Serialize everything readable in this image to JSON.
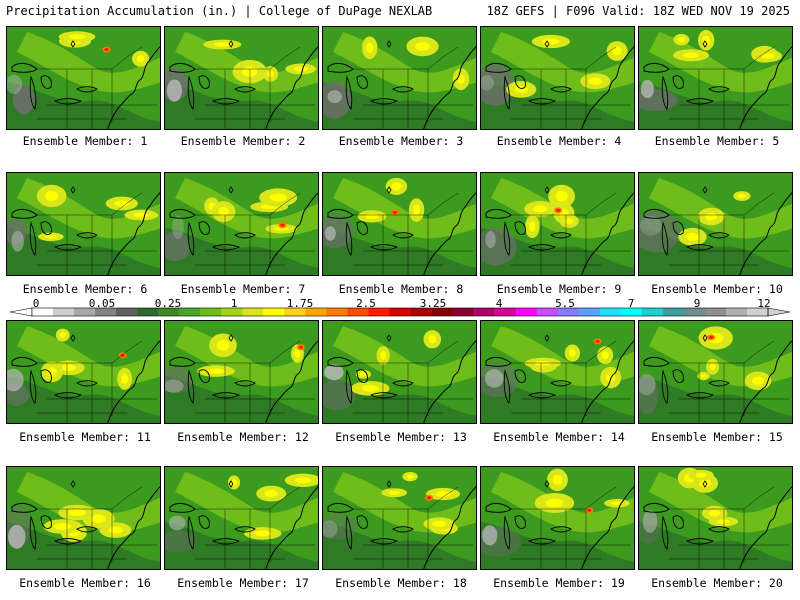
{
  "header": {
    "left": "Precipitation Accumulation (in.) | College of DuPage NEXLAB",
    "right": "18Z GEFS | F096 Valid: 18Z WED NOV 19 2025"
  },
  "colorbar": {
    "labels": [
      "0",
      "0.05",
      "0.25",
      "1",
      "1.75",
      "2.5",
      "3.25",
      "4",
      "5.5",
      "7",
      "9",
      "12"
    ],
    "colors": [
      "#ffffff",
      "#cfcfcf",
      "#a8a8a8",
      "#838383",
      "#5f5f5f",
      "#2f6a2f",
      "#3c8a24",
      "#47a52a",
      "#6fbd1a",
      "#a6d218",
      "#d9e61a",
      "#ffff00",
      "#ffd21a",
      "#ffa500",
      "#ff7a00",
      "#ff4b00",
      "#ff1a00",
      "#d90000",
      "#b00000",
      "#8a0000",
      "#8a0035",
      "#b0006e",
      "#d9009b",
      "#ff00ff",
      "#c84bff",
      "#8a7aff",
      "#5aa0ff",
      "#1ee0ff",
      "#00ffff",
      "#1ecfcf",
      "#3ea0a0",
      "#6f8f8f",
      "#8f8f8f",
      "#b0b0b0",
      "#d0d0d0"
    ]
  },
  "panels": [
    {
      "label": "Ensemble Member: 1"
    },
    {
      "label": "Ensemble Member: 2"
    },
    {
      "label": "Ensemble Member: 3"
    },
    {
      "label": "Ensemble Member: 4"
    },
    {
      "label": "Ensemble Member: 5"
    },
    {
      "label": "Ensemble Member: 6"
    },
    {
      "label": "Ensemble Member: 7"
    },
    {
      "label": "Ensemble Member: 8"
    },
    {
      "label": "Ensemble Member: 9"
    },
    {
      "label": "Ensemble Member: 10"
    },
    {
      "label": "Ensemble Member: 11"
    },
    {
      "label": "Ensemble Member: 12"
    },
    {
      "label": "Ensemble Member: 13"
    },
    {
      "label": "Ensemble Member: 14"
    },
    {
      "label": "Ensemble Member: 15"
    },
    {
      "label": "Ensemble Member: 16"
    },
    {
      "label": "Ensemble Member: 17"
    },
    {
      "label": "Ensemble Member: 18"
    },
    {
      "label": "Ensemble Member: 19"
    },
    {
      "label": "Ensemble Member: 20"
    }
  ]
}
